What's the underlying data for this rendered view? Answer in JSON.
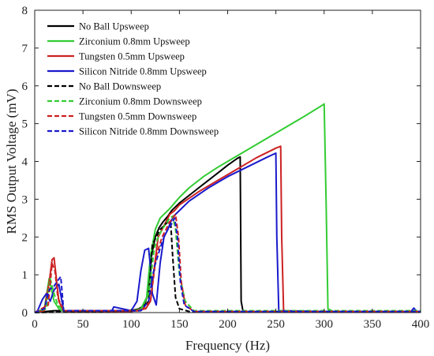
{
  "chart_data": {
    "type": "line",
    "xlabel": "Frequency (Hz)",
    "ylabel": "RMS Output Voltage (mV)",
    "xlim": [
      0,
      400
    ],
    "ylim": [
      0,
      8
    ],
    "xticks": [
      0,
      50,
      100,
      150,
      200,
      250,
      300,
      350,
      400
    ],
    "yticks": [
      0,
      1,
      2,
      3,
      4,
      5,
      6,
      7,
      8
    ],
    "grid": false,
    "legend_position": "top-left",
    "series": [
      {
        "name": "No Ball Upsweep",
        "color": "#000000",
        "dash": "solid",
        "x": [
          0,
          20,
          100,
          108,
          114,
          118,
          121,
          125,
          129,
          133,
          138,
          142,
          150,
          160,
          170,
          180,
          190,
          200,
          210,
          213,
          214,
          216,
          300,
          400
        ],
        "y": [
          0,
          0.05,
          0.05,
          0.1,
          0.2,
          0.6,
          1.5,
          2.0,
          2.25,
          2.4,
          2.55,
          2.7,
          2.9,
          3.1,
          3.3,
          3.5,
          3.7,
          3.9,
          4.08,
          4.12,
          0.3,
          0.02,
          0.02,
          0.02
        ]
      },
      {
        "name": "Zirconium 0.8mm Upsweep",
        "color": "#33cc33",
        "dash": "solid",
        "x": [
          0,
          5,
          10,
          15,
          20,
          25,
          30,
          60,
          100,
          110,
          116,
          120,
          125,
          130,
          140,
          150,
          160,
          175,
          190,
          200,
          220,
          240,
          260,
          280,
          299,
          300,
          302,
          304,
          310,
          350,
          400
        ],
        "y": [
          0,
          0.05,
          0.1,
          0.9,
          0.3,
          0.1,
          0.03,
          0.03,
          0.03,
          0.1,
          0.4,
          1.5,
          2.2,
          2.5,
          2.75,
          3.05,
          3.3,
          3.6,
          3.85,
          4.0,
          4.3,
          4.6,
          4.9,
          5.2,
          5.5,
          5.52,
          3.0,
          0.1,
          0.02,
          0.02,
          0.02
        ]
      },
      {
        "name": "Tungsten 0.5mm Upsweep",
        "color": "#cc2222",
        "dash": "solid",
        "x": [
          0,
          10,
          15,
          18,
          20,
          22,
          25,
          30,
          100,
          115,
          120,
          124,
          128,
          132,
          136,
          140,
          145,
          150,
          170,
          190,
          210,
          230,
          250,
          255,
          256,
          258,
          300,
          400
        ],
        "y": [
          0,
          0.05,
          0.8,
          1.4,
          1.45,
          1.0,
          0.3,
          0.03,
          0.03,
          0.1,
          0.3,
          1.2,
          2.0,
          2.2,
          2.4,
          2.6,
          2.7,
          2.85,
          3.2,
          3.5,
          3.8,
          4.1,
          4.35,
          4.4,
          2.0,
          0.05,
          0.02,
          0.02
        ]
      },
      {
        "name": "Silicon Nitride 0.8mm Upsweep",
        "color": "#1a1acc",
        "dash": "solid",
        "x": [
          0,
          3,
          8,
          12,
          16,
          20,
          25,
          30,
          80,
          82,
          100,
          106,
          110,
          114,
          118,
          120,
          122,
          126,
          130,
          134,
          138,
          141,
          144,
          148,
          160,
          180,
          200,
          220,
          240,
          250,
          251,
          253,
          300,
          390,
          393,
          396,
          400
        ],
        "y": [
          0,
          0.05,
          0.35,
          0.5,
          0.3,
          0.6,
          0.75,
          0.05,
          0.05,
          0.15,
          0.05,
          0.3,
          1.1,
          1.65,
          1.7,
          1.2,
          0.5,
          0.2,
          1.3,
          2.0,
          2.2,
          2.4,
          2.55,
          2.65,
          2.95,
          3.3,
          3.6,
          3.85,
          4.1,
          4.22,
          2.0,
          0.05,
          0.03,
          0.03,
          0.12,
          0.03,
          0.03
        ]
      },
      {
        "name": "No Ball Downsweep",
        "color": "#000000",
        "dash": "dashed",
        "x": [
          0,
          110,
          118,
          122,
          126,
          130,
          134,
          138,
          141,
          143,
          146,
          150,
          160,
          400
        ],
        "y": [
          0,
          0.05,
          0.3,
          1.8,
          2.0,
          2.2,
          2.3,
          2.4,
          2.35,
          1.5,
          0.4,
          0.1,
          0.03,
          0.03
        ]
      },
      {
        "name": "Zirconium 0.8mm Downsweep",
        "color": "#33cc33",
        "dash": "dashed",
        "x": [
          0,
          12,
          16,
          20,
          24,
          30,
          110,
          118,
          124,
          128,
          132,
          136,
          140,
          143,
          146,
          150,
          156,
          165,
          400
        ],
        "y": [
          0,
          0.1,
          0.9,
          0.5,
          0.2,
          0.05,
          0.05,
          0.5,
          1.7,
          2.0,
          2.2,
          2.35,
          2.5,
          2.55,
          2.2,
          1.0,
          0.3,
          0.05,
          0.05
        ]
      },
      {
        "name": "Tungsten 0.5mm Downsweep",
        "color": "#cc2222",
        "dash": "dashed",
        "x": [
          0,
          14,
          18,
          21,
          24,
          30,
          110,
          120,
          126,
          132,
          136,
          140,
          143,
          146,
          149,
          152,
          156,
          165,
          400
        ],
        "y": [
          0,
          0.2,
          1.3,
          1.1,
          0.4,
          0.05,
          0.05,
          0.3,
          1.5,
          2.0,
          2.2,
          2.4,
          2.5,
          2.6,
          2.0,
          0.8,
          0.2,
          0.03,
          0.03
        ]
      },
      {
        "name": "Silicon Nitride 0.8mm Downsweep",
        "color": "#1a1acc",
        "dash": "dashed",
        "x": [
          0,
          10,
          15,
          20,
          24,
          27,
          30,
          110,
          118,
          124,
          130,
          134,
          138,
          142,
          145,
          148,
          151,
          155,
          165,
          400
        ],
        "y": [
          0,
          0.1,
          0.6,
          0.7,
          0.85,
          0.95,
          0.05,
          0.05,
          0.3,
          1.2,
          1.7,
          2.0,
          2.2,
          2.35,
          2.5,
          2.0,
          0.8,
          0.2,
          0.03,
          0.03
        ]
      }
    ]
  }
}
